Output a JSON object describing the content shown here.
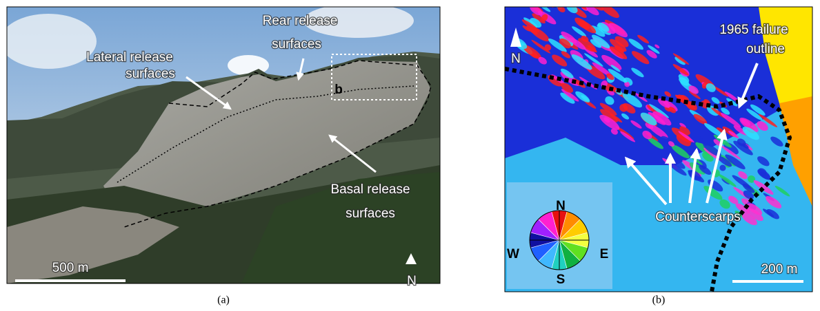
{
  "panel_a": {
    "lateral_label": [
      "Lateral release",
      "surfaces"
    ],
    "rear_label": [
      "Rear release",
      "surfaces"
    ],
    "basal_label": [
      "Basal release",
      "surfaces"
    ],
    "inset_label": "b",
    "scale_bar": "500 m",
    "north": "N",
    "caption": "(a)"
  },
  "panel_b": {
    "outline_label": [
      "1965 failure",
      "outline"
    ],
    "counterscarps_label": "Counterscarps",
    "north": "N",
    "scale_bar": "200 m",
    "compass": {
      "n": "N",
      "e": "E",
      "s": "S",
      "w": "W"
    },
    "caption": "(b)"
  }
}
